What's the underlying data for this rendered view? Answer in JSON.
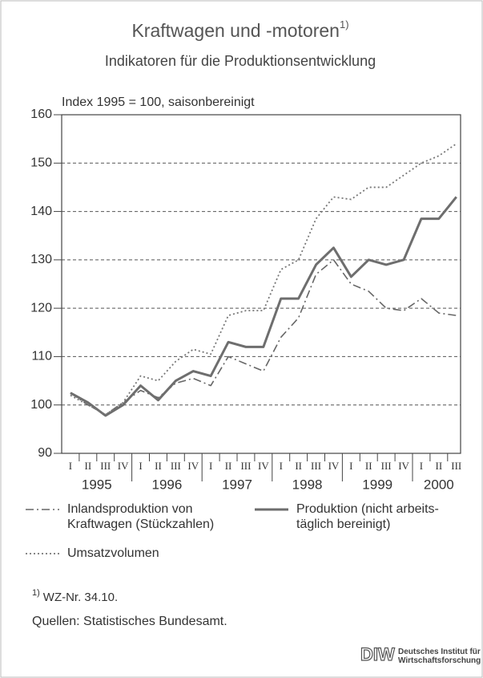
{
  "chart_data": {
    "type": "line",
    "title": "Kraftwagen und -motoren",
    "title_note": "1)",
    "subtitle": "Indikatoren für die Produktionsentwicklung",
    "y_label": "Index 1995 = 100, saisonbereinigt",
    "categories": [
      "I",
      "II",
      "III",
      "IV",
      "I",
      "II",
      "III",
      "IV",
      "I",
      "II",
      "III",
      "IV",
      "I",
      "II",
      "III",
      "IV",
      "I",
      "II",
      "III",
      "IV",
      "I",
      "II",
      "III"
    ],
    "years": [
      "1995",
      "1996",
      "1997",
      "1998",
      "1999",
      "2000"
    ],
    "ylim": [
      90,
      160
    ],
    "yticks": [
      90,
      100,
      110,
      120,
      130,
      140,
      150,
      160
    ],
    "grid": true,
    "series": [
      {
        "name": "Inlandsproduktion von\nKraftwagen (Stückzahlen)",
        "color": "#666666",
        "style": "dashdot",
        "values": [
          102.5,
          100,
          98,
          100.5,
          103,
          101.5,
          104.5,
          105.5,
          104,
          110,
          108.5,
          107,
          114,
          118,
          127,
          130,
          125,
          123.5,
          120,
          119.5,
          122,
          119,
          118.5
        ]
      },
      {
        "name": "Produktion (nicht arbeits-\ntäglich bereinigt)",
        "color": "#6e6e6e",
        "style": "solid",
        "values": [
          102.5,
          100.5,
          97.8,
          100,
          104,
          101,
          105,
          107,
          106,
          113,
          112,
          112,
          122,
          122,
          129,
          132.5,
          126.5,
          130,
          129,
          130,
          138.5,
          138.5,
          143
        ]
      },
      {
        "name": "Umsatzvolumen",
        "color": "#777777",
        "style": "dotted",
        "values": [
          102,
          100,
          98,
          100.5,
          106,
          105,
          109,
          111.5,
          110.5,
          118.5,
          119.5,
          119.5,
          128,
          130,
          138.5,
          143,
          142.5,
          145,
          145,
          147.5,
          150,
          151.5,
          154
        ]
      }
    ],
    "footnote_mark": "1)",
    "footnote": "WZ-Nr. 34.10.",
    "source": "Quellen: Statistisches Bundesamt.",
    "logo": "DIW",
    "logo_text": "Deutsches Institut für\nWirtschaftsforschung"
  }
}
